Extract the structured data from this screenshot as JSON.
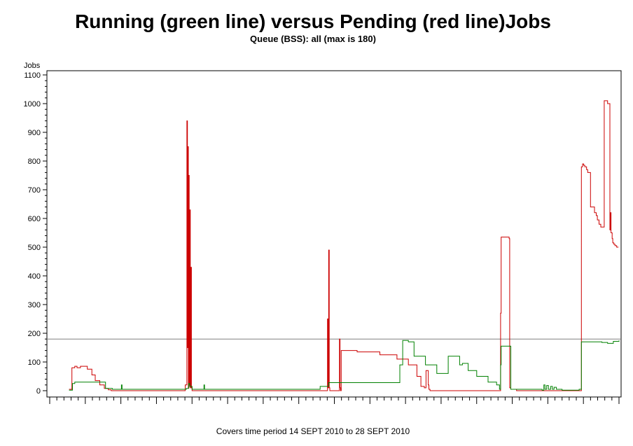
{
  "chart_data": {
    "type": "line",
    "title": "Running (green line) versus Pending (red line)Jobs",
    "subtitle": "Queue (BSS): all (max is 180)",
    "ylabel": "Jobs",
    "footnote": "Covers time period 14 SEPT 2010 to 28 SEPT 2010",
    "ylim": [
      0,
      1100
    ],
    "yticks": [
      0,
      100,
      200,
      300,
      400,
      500,
      600,
      700,
      800,
      900,
      1000,
      1100
    ],
    "ytick_labels": [
      "0",
      "100",
      "200",
      "300",
      "400",
      "500",
      "600",
      "700",
      "800",
      "900",
      "1000",
      "1100"
    ],
    "xlim": [
      0,
      100
    ],
    "reference_line": {
      "value": 180,
      "color": "#808080"
    },
    "grid": false,
    "series": [
      {
        "color": "#cc0000",
        "x": [
          3.4,
          3.9,
          4.4,
          4.8,
          5.4,
          6.0,
          6.6,
          7.4,
          8.0,
          8.8,
          9.6,
          10.3,
          10.8,
          11.3,
          11.8,
          13.0,
          23.0,
          23.8,
          24.1,
          24.2,
          24.3,
          24.35,
          24.45,
          24.5,
          24.6,
          24.7,
          24.8,
          24.9,
          25.0,
          25.5,
          36.0,
          47.5,
          48.5,
          48.8,
          48.9,
          49.0,
          49.1,
          49.2,
          49.5,
          50.0,
          50.9,
          51.0,
          51.1,
          51.2,
          51.3,
          52.0,
          54.0,
          58.0,
          61.0,
          63.0,
          64.5,
          65.2,
          65.8,
          66.1,
          66.5,
          66.6,
          66.8,
          67.3,
          68.5,
          69.0,
          70.0,
          79.0,
          79.2,
          79.3,
          79.5,
          80.5,
          80.7,
          80.8,
          81.0,
          82.0,
          93.0,
          93.4,
          93.6,
          93.8,
          94.0,
          94.3,
          94.5,
          95.0,
          95.7,
          96.0,
          96.2,
          96.5,
          96.8,
          97.4,
          98.0,
          98.4,
          98.5,
          98.6,
          98.8,
          98.9,
          99.1,
          99.3,
          99.6,
          99.9
        ],
        "y": [
          5,
          80,
          85,
          80,
          85,
          85,
          75,
          55,
          35,
          20,
          8,
          3,
          0,
          0,
          0,
          0,
          0,
          20,
          940,
          150,
          850,
          10,
          750,
          20,
          630,
          10,
          430,
          10,
          0,
          0,
          0,
          0,
          0,
          250,
          10,
          490,
          10,
          0,
          0,
          0,
          180,
          10,
          0,
          140,
          140,
          140,
          135,
          125,
          110,
          90,
          50,
          15,
          10,
          70,
          20,
          5,
          0,
          0,
          0,
          0,
          0,
          0,
          270,
          535,
          535,
          535,
          530,
          10,
          5,
          0,
          0,
          780,
          790,
          785,
          780,
          770,
          760,
          640,
          620,
          610,
          595,
          580,
          570,
          1010,
          1000,
          560,
          620,
          550,
          530,
          515,
          510,
          505,
          500,
          500
        ]
      },
      {
        "color": "#008000",
        "x": [
          3.4,
          4.0,
          4.4,
          8.8,
          9.8,
          11.0,
          12.5,
          12.6,
          12.7,
          13.5,
          23.0,
          24.0,
          24.4,
          24.6,
          25.0,
          25.5,
          27.0,
          27.1,
          27.2,
          30.0,
          38.0,
          42.0,
          47.5,
          48.0,
          49.0,
          59.0,
          60.0,
          61.3,
          61.5,
          62.0,
          63.0,
          64.0,
          66.0,
          68.0,
          70.0,
          72.0,
          72.5,
          73.5,
          75.0,
          77.0,
          78.5,
          79.0,
          79.2,
          79.3,
          80.8,
          81.0,
          82.0,
          86.5,
          86.8,
          87.0,
          87.3,
          87.6,
          88.0,
          88.3,
          88.6,
          89.0,
          90.0,
          92.0,
          93.0,
          93.4,
          94.0,
          96.0,
          97.0,
          98.0,
          99.0,
          100.0
        ],
        "y": [
          2,
          25,
          30,
          30,
          8,
          5,
          5,
          20,
          5,
          5,
          5,
          8,
          25,
          15,
          5,
          5,
          5,
          20,
          5,
          5,
          5,
          5,
          15,
          15,
          28,
          28,
          28,
          28,
          90,
          175,
          170,
          120,
          90,
          60,
          120,
          90,
          95,
          70,
          50,
          30,
          20,
          5,
          90,
          155,
          155,
          5,
          5,
          2,
          20,
          5,
          18,
          5,
          15,
          5,
          12,
          5,
          2,
          2,
          5,
          170,
          170,
          170,
          168,
          165,
          172,
          175
        ]
      }
    ]
  }
}
